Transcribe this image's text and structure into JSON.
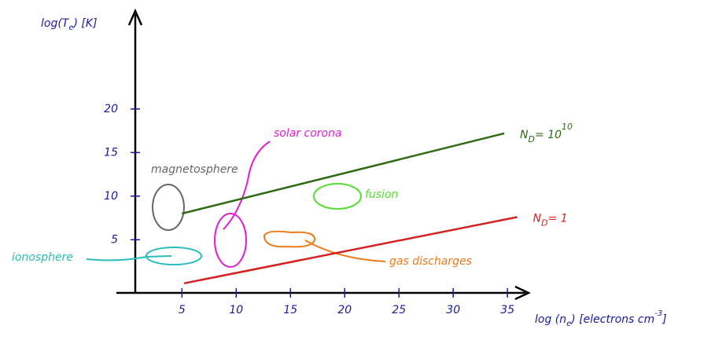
{
  "chart_data": {
    "type": "line",
    "ylabel": {
      "pre": "log(T",
      "sub": "e",
      "post": ") [K]"
    },
    "xlabel": {
      "pre": "log (n",
      "sub": "e",
      "mid": ") [electrons  cm",
      "sup": "-3",
      "post": "]"
    },
    "xlim": [
      0.7,
      36
    ],
    "xticks": [
      5,
      10,
      15,
      20,
      25,
      30,
      35
    ],
    "ylim": [
      -1.1,
      30.7
    ],
    "yticks": [
      5,
      10,
      15,
      20
    ],
    "series": [
      {
        "label": {
          "main": "N",
          "sub": "D",
          "rest": "= 10",
          "sup": "10"
        },
        "color": "#2e6b12",
        "x": [
          5,
          34.7
        ],
        "values": [
          8.0,
          17.2
        ]
      },
      {
        "label": {
          "main": "N",
          "sub": "D",
          "rest": "= 1",
          "sup": ""
        },
        "color": "#d42020",
        "x": [
          5.2,
          35.9
        ],
        "values": [
          0.0,
          7.6
        ]
      }
    ],
    "annotations": [
      {
        "text": "ionosphere",
        "color": "#2bbcbc"
      },
      {
        "text": "magnetosphere",
        "color": "#666666"
      },
      {
        "text": "solar corona",
        "color": "#e020d0"
      },
      {
        "text": "fusion",
        "color": "#55dd33"
      },
      {
        "text": "gas discharges",
        "color": "#ee7a1a"
      }
    ]
  }
}
